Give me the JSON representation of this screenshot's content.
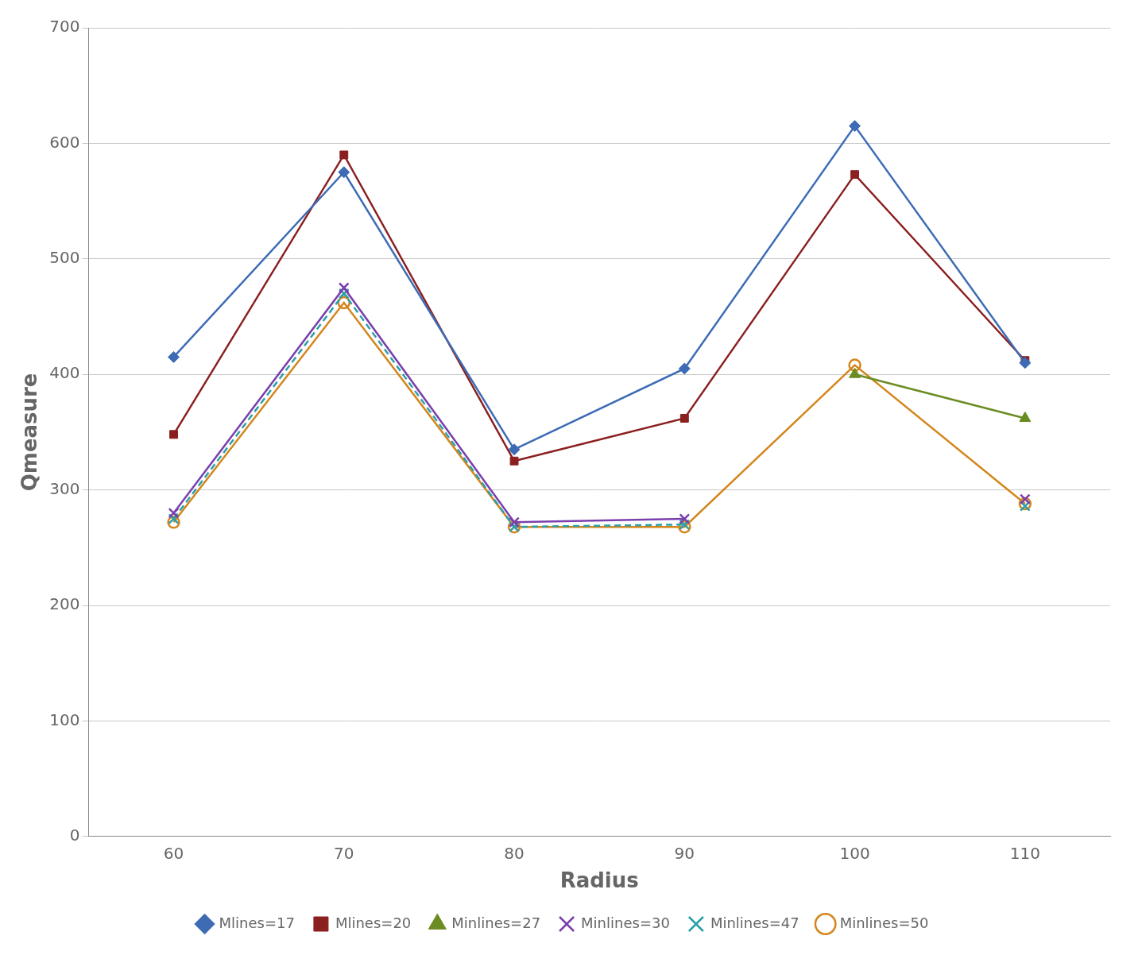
{
  "chart_data": {
    "type": "line",
    "xlabel": "Radius",
    "ylabel": "Qmeasure",
    "x": [
      60,
      70,
      80,
      90,
      100,
      110
    ],
    "series": [
      {
        "name": "Mlines=17",
        "color": "#3D6CB5",
        "marker": "diamond",
        "line_style": "solid",
        "values": [
          415,
          575,
          335,
          405,
          615,
          410
        ]
      },
      {
        "name": "Mlines=20",
        "color": "#8B2020",
        "marker": "square",
        "line_style": "solid",
        "values": [
          348,
          590,
          325,
          362,
          573,
          412
        ]
      },
      {
        "name": "Minlines=27",
        "color": "#6B8C21",
        "marker": "triangle",
        "line_style": "solid",
        "values": [
          null,
          null,
          null,
          null,
          400,
          362
        ]
      },
      {
        "name": "Minlines=30",
        "color": "#7B3FAD",
        "marker": "x",
        "line_style": "solid",
        "values": [
          280,
          475,
          272,
          275,
          null,
          292
        ]
      },
      {
        "name": "Minlines=47",
        "color": "#2B9FA8",
        "marker": "x",
        "line_style": "dashed",
        "values": [
          275,
          470,
          268,
          270,
          null,
          286
        ]
      },
      {
        "name": "Minlines=50",
        "color": "#D4861C",
        "marker": "open_circle",
        "line_style": "solid",
        "values": [
          272,
          462,
          268,
          268,
          408,
          288
        ]
      }
    ],
    "xlim": [
      55,
      115
    ],
    "xticks": [
      60,
      70,
      80,
      90,
      100,
      110
    ],
    "ylim": [
      0,
      700
    ],
    "yticks": [
      0,
      100,
      200,
      300,
      400,
      500,
      600,
      700
    ],
    "grid": "y",
    "legend": "bottom"
  }
}
